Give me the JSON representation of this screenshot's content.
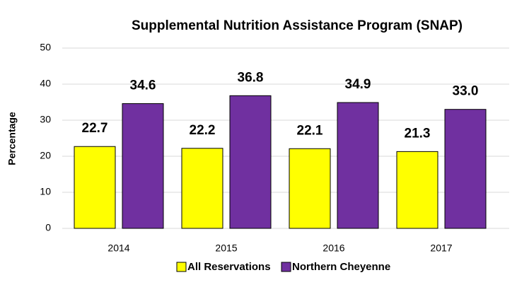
{
  "chart_data": {
    "type": "bar",
    "title": "Supplemental Nutrition Assistance Program (SNAP)",
    "y_label": "Percentage",
    "categories": [
      "2014",
      "2015",
      "2016",
      "2017"
    ],
    "series": [
      {
        "name": "All Reservations",
        "color": "#ffff00",
        "values": [
          22.7,
          22.2,
          22.1,
          21.3
        ],
        "value_labels": [
          "22.7",
          "22.2",
          "22.1",
          "21.3"
        ]
      },
      {
        "name": "Northern Cheyenne",
        "color": "#7030a0",
        "values": [
          34.6,
          36.8,
          34.9,
          33.0
        ],
        "value_labels": [
          "34.6",
          "36.8",
          "34.9",
          "33.0"
        ]
      }
    ],
    "ylim": [
      0,
      50
    ],
    "yticks": [
      0,
      10,
      20,
      30,
      40,
      50
    ],
    "grid": true,
    "legend": "bottom"
  }
}
